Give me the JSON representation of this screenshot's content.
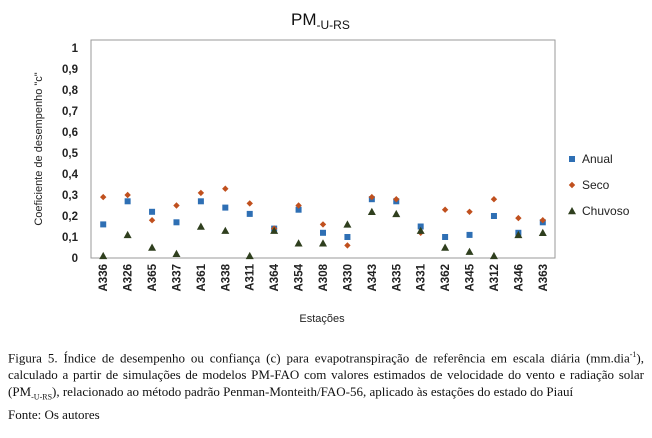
{
  "chart_data": {
    "type": "scatter",
    "title": "PM",
    "title_subscript": "-U-RS",
    "xlabel": "Estações",
    "ylabel": "Coeficiente de desempenho \"c\"",
    "ylim": [
      0,
      1
    ],
    "yticks": [
      "0",
      "0,1",
      "0,2",
      "0,3",
      "0,4",
      "0,5",
      "0,6",
      "0,7",
      "0,8",
      "0,9",
      "1"
    ],
    "grid": false,
    "legend_position": "right",
    "categories": [
      "A336",
      "A326",
      "A365",
      "A337",
      "A361",
      "A338",
      "A311",
      "A364",
      "A354",
      "A308",
      "A330",
      "A343",
      "A335",
      "A331",
      "A362",
      "A345",
      "A312",
      "A346",
      "A363"
    ],
    "series": [
      {
        "name": "Anual",
        "marker": "square",
        "color": "#2e6fb4",
        "values": [
          0.16,
          0.27,
          0.22,
          0.17,
          0.27,
          0.24,
          0.21,
          0.14,
          0.23,
          0.12,
          0.1,
          0.28,
          0.27,
          0.15,
          0.1,
          0.11,
          0.2,
          0.12,
          0.17
        ]
      },
      {
        "name": "Seco",
        "marker": "diamond",
        "color": "#c0501e",
        "values": [
          0.29,
          0.3,
          0.18,
          0.25,
          0.31,
          0.33,
          0.26,
          0.14,
          0.25,
          0.16,
          0.06,
          0.29,
          0.28,
          0.12,
          0.23,
          0.22,
          0.28,
          0.19,
          0.18
        ]
      },
      {
        "name": "Chuvoso",
        "marker": "triangle",
        "color": "#2f3f1e",
        "values": [
          0.01,
          0.11,
          0.05,
          0.02,
          0.15,
          0.13,
          0.01,
          0.13,
          0.07,
          0.07,
          0.16,
          0.22,
          0.21,
          0.13,
          0.05,
          0.03,
          0.01,
          0.11,
          0.12
        ]
      }
    ]
  },
  "caption": {
    "line1": "Figura 5. Índice de desempenho ou confiança (c) para evapotranspiração de referência em escala diária",
    "line2_a": "(mm.dia",
    "line2_sup": "-1",
    "line2_b": "), calculado a partir de simulações de modelos PM-FAO com valores estimados de velocidade",
    "line3_a": "do vento e radiação solar (PM",
    "line3_sub": "-U-RS",
    "line3_b": "), relacionado ao método padrão Penman-Monteith/FAO-56, aplicado",
    "line4": "às estações do estado do Piauí",
    "source": "Fonte: Os autores"
  }
}
